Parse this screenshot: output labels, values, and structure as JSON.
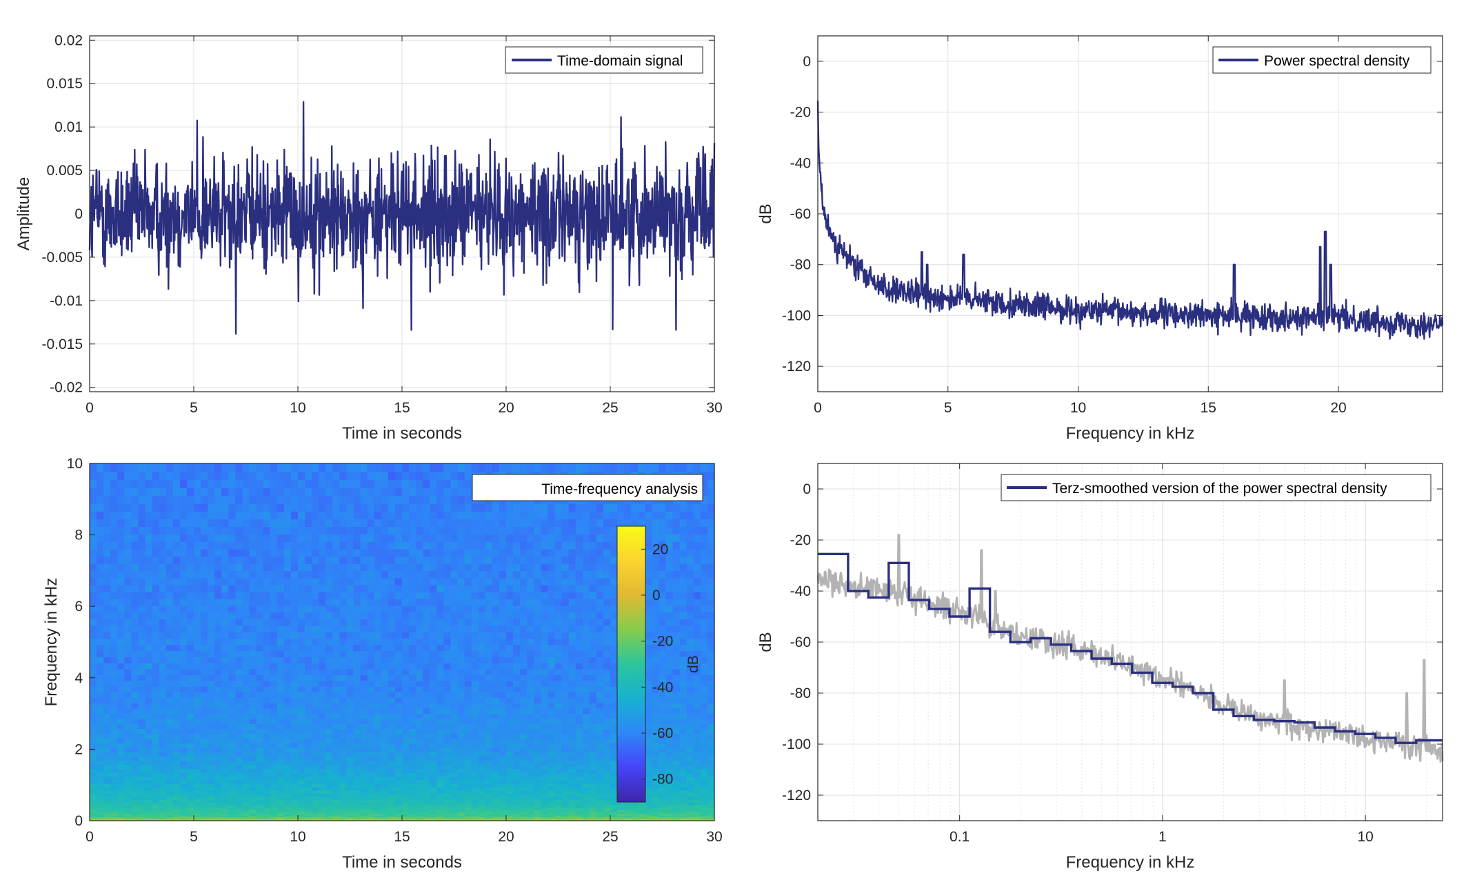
{
  "chart_data": [
    {
      "id": "time_domain",
      "type": "line",
      "legend": [
        "Time-domain signal"
      ],
      "legend_position": "top-right",
      "xlabel": "Time in seconds",
      "ylabel": "Amplitude",
      "xlim": [
        0,
        30
      ],
      "ylim": [
        -0.0205,
        0.0205
      ],
      "xticks": [
        0,
        5,
        10,
        15,
        20,
        25,
        30
      ],
      "xtick_labels": [
        "0",
        "5",
        "10",
        "15",
        "20",
        "25",
        "30"
      ],
      "yticks": [
        -0.02,
        -0.015,
        -0.01,
        -0.005,
        0,
        0.005,
        0.01,
        0.015,
        0.02
      ],
      "ytick_labels": [
        "-0.02",
        "-0.015",
        "-0.01",
        "-0.005",
        "0",
        "0.005",
        "0.01",
        "0.015",
        "0.02"
      ],
      "grid": true,
      "series_color": "#2b2f7f",
      "signal": {
        "duration": 30,
        "samples": 1500,
        "typical_peak": 0.007,
        "max": 0.0145,
        "min": -0.017
      }
    },
    {
      "id": "psd",
      "type": "line",
      "legend": [
        "Power spectral density"
      ],
      "legend_position": "top-right",
      "xlabel": "Frequency in kHz",
      "ylabel": "dB",
      "xlim": [
        0,
        24
      ],
      "ylim": [
        -130,
        10
      ],
      "xticks": [
        0,
        5,
        10,
        15,
        20
      ],
      "xtick_labels": [
        "0",
        "5",
        "10",
        "15",
        "20"
      ],
      "yticks": [
        -120,
        -100,
        -80,
        -60,
        -40,
        -20,
        0
      ],
      "ytick_labels": [
        "-120",
        "-100",
        "-80",
        "-60",
        "-40",
        "-20",
        "0"
      ],
      "grid": true,
      "series_color": "#2b2f7f",
      "envelope": {
        "x": [
          0,
          0.05,
          0.2,
          0.5,
          1,
          2,
          3,
          5,
          8,
          10,
          15,
          20,
          24
        ],
        "y": [
          -18,
          -40,
          -58,
          -68,
          -76,
          -86,
          -91,
          -93,
          -96,
          -98,
          -100,
          -101,
          -104
        ]
      },
      "peaks": [
        {
          "x": 4.0,
          "y": -75
        },
        {
          "x": 4.2,
          "y": -80
        },
        {
          "x": 5.6,
          "y": -76
        },
        {
          "x": 16.0,
          "y": -80
        },
        {
          "x": 19.3,
          "y": -73
        },
        {
          "x": 19.5,
          "y": -67
        },
        {
          "x": 19.7,
          "y": -80
        }
      ]
    },
    {
      "id": "spectrogram",
      "type": "heatmap",
      "legend": [
        "Time-frequency analysis"
      ],
      "legend_position": "top-right",
      "xlabel": "Time in seconds",
      "ylabel": "Frequency in kHz",
      "xlim": [
        0,
        30
      ],
      "ylim": [
        0,
        10
      ],
      "xticks": [
        0,
        5,
        10,
        15,
        20,
        25,
        30
      ],
      "xtick_labels": [
        "0",
        "5",
        "10",
        "15",
        "20",
        "25",
        "30"
      ],
      "yticks": [
        0,
        2,
        4,
        6,
        8,
        10
      ],
      "ytick_labels": [
        "0",
        "2",
        "4",
        "6",
        "8",
        "10"
      ],
      "colorbar": {
        "label": "dB",
        "range": [
          -90,
          30
        ],
        "ticks": [
          -80,
          -60,
          -40,
          -20,
          0,
          20
        ],
        "tick_labels": [
          "-80",
          "-60",
          "-40",
          "-20",
          "0",
          "20"
        ],
        "colormap": [
          "#3e26a8",
          "#4743f8",
          "#2e87f7",
          "#17b1d0",
          "#2cc59d",
          "#86cc4c",
          "#e0b932",
          "#fcd42e",
          "#f9fb15"
        ]
      },
      "level_profile": {
        "freq_khz": [
          0,
          0.1,
          0.5,
          1,
          2,
          4,
          10
        ],
        "db": [
          -5,
          -25,
          -38,
          -45,
          -55,
          -60,
          -62
        ]
      }
    },
    {
      "id": "terz_psd",
      "type": "line",
      "legend": [
        "Terz-smoothed version of the power spectral density"
      ],
      "legend_position": "top-right",
      "xlabel": "Frequency in kHz",
      "ylabel": "dB",
      "xscale": "log",
      "xlim": [
        0.02,
        24
      ],
      "ylim": [
        -130,
        10
      ],
      "xticks": [
        0.1,
        1,
        10
      ],
      "xtick_labels": [
        "0.1",
        "1",
        "10"
      ],
      "yticks": [
        -120,
        -100,
        -80,
        -60,
        -40,
        -20,
        0
      ],
      "ytick_labels": [
        "-120",
        "-100",
        "-80",
        "-60",
        "-40",
        "-20",
        "0"
      ],
      "grid": true,
      "series": [
        {
          "color": "#2b2f7f",
          "steps": [
            [
              0.02,
              0.0282,
              -25.5
            ],
            [
              0.0282,
              0.0355,
              -40
            ],
            [
              0.0355,
              0.0447,
              -42.5
            ],
            [
              0.0447,
              0.0562,
              -29
            ],
            [
              0.0562,
              0.0708,
              -43.5
            ],
            [
              0.0708,
              0.0891,
              -47
            ],
            [
              0.0891,
              0.112,
              -50
            ],
            [
              0.112,
              0.141,
              -39
            ],
            [
              0.141,
              0.178,
              -56
            ],
            [
              0.178,
              0.224,
              -60
            ],
            [
              0.224,
              0.282,
              -58.5
            ],
            [
              0.282,
              0.355,
              -61
            ],
            [
              0.355,
              0.447,
              -63.5
            ],
            [
              0.447,
              0.562,
              -66.5
            ],
            [
              0.562,
              0.708,
              -68.5
            ],
            [
              0.708,
              0.891,
              -72
            ],
            [
              0.891,
              1.12,
              -76
            ],
            [
              1.12,
              1.41,
              -77.5
            ],
            [
              1.41,
              1.78,
              -80
            ],
            [
              1.78,
              2.24,
              -86.5
            ],
            [
              2.24,
              2.82,
              -89
            ],
            [
              2.82,
              3.55,
              -90.5
            ],
            [
              3.55,
              4.47,
              -91
            ],
            [
              4.47,
              5.62,
              -91.5
            ],
            [
              5.62,
              7.08,
              -93.5
            ],
            [
              7.08,
              8.91,
              -95
            ],
            [
              8.91,
              11.2,
              -96
            ],
            [
              11.2,
              14.1,
              -97.5
            ],
            [
              14.1,
              17.8,
              -99.5
            ],
            [
              17.8,
              24,
              -98.5
            ]
          ]
        },
        {
          "color": "#b3b3b3",
          "envelope": {
            "x": [
              0.02,
              0.05,
              0.1,
              0.2,
              0.5,
              1,
              2,
              3,
              5,
              10,
              20,
              24
            ],
            "y": [
              -35,
              -42,
              -48,
              -58,
              -66,
              -74,
              -85,
              -90,
              -93,
              -98,
              -101,
              -104
            ]
          },
          "peaks": [
            {
              "x": 0.05,
              "y": -18
            },
            {
              "x": 0.128,
              "y": -24
            },
            {
              "x": 0.15,
              "y": -40
            },
            {
              "x": 19.5,
              "y": -67
            },
            {
              "x": 16.0,
              "y": -80
            },
            {
              "x": 4.0,
              "y": -75
            }
          ]
        }
      ]
    }
  ]
}
